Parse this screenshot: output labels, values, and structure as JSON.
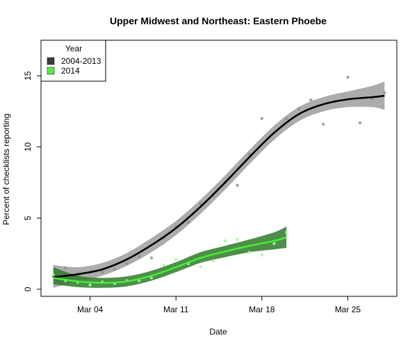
{
  "chart_data": {
    "type": "scatter",
    "title": "Upper Midwest and Northeast: Eastern Phoebe",
    "xlabel": "Date",
    "ylabel": "Percent of checklists reporting",
    "x_unit": "date (day of year, 2014)",
    "xlim": [
      "2014-02-28",
      "2014-03-29"
    ],
    "ylim": [
      -0.5,
      17.5
    ],
    "x_ticks": [
      {
        "date": "2014-03-04",
        "label": "Mar 04"
      },
      {
        "date": "2014-03-11",
        "label": "Mar 11"
      },
      {
        "date": "2014-03-18",
        "label": "Mar 18"
      },
      {
        "date": "2014-03-25",
        "label": "Mar 25"
      }
    ],
    "y_ticks": [
      0,
      5,
      10,
      15
    ],
    "legend": {
      "title": "Year",
      "placement": "top-left",
      "entries": [
        {
          "label": "2004-2013",
          "color": "#3d3d3d"
        },
        {
          "label": "2014",
          "color": "#55ee44"
        }
      ]
    },
    "series": [
      {
        "name": "2004-2013",
        "point_color": "#8c8c8c",
        "line_color": "#000000",
        "band_color": "#8c8c8c",
        "points": [
          {
            "x": "2014-03-01",
            "y": 0.9
          },
          {
            "x": "2014-03-02",
            "y": 1.5
          },
          {
            "x": "2014-03-03",
            "y": 1.1
          },
          {
            "x": "2014-03-04",
            "y": 1.2
          },
          {
            "x": "2014-03-05",
            "y": 1.2
          },
          {
            "x": "2014-03-06",
            "y": 1.4
          },
          {
            "x": "2014-03-07",
            "y": 1.8
          },
          {
            "x": "2014-03-08",
            "y": 2.3
          },
          {
            "x": "2014-03-09",
            "y": 2.2
          },
          {
            "x": "2014-03-10",
            "y": 3.6
          },
          {
            "x": "2014-03-11",
            "y": 4.4
          },
          {
            "x": "2014-03-12",
            "y": 4.7
          },
          {
            "x": "2014-03-13",
            "y": 6.0
          },
          {
            "x": "2014-03-14",
            "y": 6.6
          },
          {
            "x": "2014-03-15",
            "y": 7.5
          },
          {
            "x": "2014-03-16",
            "y": 7.3
          },
          {
            "x": "2014-03-17",
            "y": 9.5
          },
          {
            "x": "2014-03-18",
            "y": 12.0
          },
          {
            "x": "2014-03-19",
            "y": 11.0
          },
          {
            "x": "2014-03-20",
            "y": 12.0
          },
          {
            "x": "2014-03-21",
            "y": 12.7
          },
          {
            "x": "2014-03-22",
            "y": 13.3
          },
          {
            "x": "2014-03-23",
            "y": 11.6
          },
          {
            "x": "2014-03-24",
            "y": 13.2
          },
          {
            "x": "2014-03-25",
            "y": 14.9
          },
          {
            "x": "2014-03-26",
            "y": 11.7
          },
          {
            "x": "2014-03-27",
            "y": 13.4
          },
          {
            "x": "2014-03-28",
            "y": 13.8
          }
        ],
        "smooth": [
          {
            "x": "2014-03-01",
            "y": 0.85,
            "lo": 0.1,
            "hi": 1.7
          },
          {
            "x": "2014-03-03",
            "y": 1.05,
            "lo": 0.55,
            "hi": 1.55
          },
          {
            "x": "2014-03-05",
            "y": 1.4,
            "lo": 0.95,
            "hi": 1.85
          },
          {
            "x": "2014-03-07",
            "y": 2.1,
            "lo": 1.65,
            "hi": 2.55
          },
          {
            "x": "2014-03-09",
            "y": 3.1,
            "lo": 2.6,
            "hi": 3.6
          },
          {
            "x": "2014-03-11",
            "y": 4.3,
            "lo": 3.8,
            "hi": 4.8
          },
          {
            "x": "2014-03-13",
            "y": 5.8,
            "lo": 5.3,
            "hi": 6.3
          },
          {
            "x": "2014-03-15",
            "y": 7.5,
            "lo": 7.0,
            "hi": 8.0
          },
          {
            "x": "2014-03-17",
            "y": 9.3,
            "lo": 8.8,
            "hi": 9.8
          },
          {
            "x": "2014-03-19",
            "y": 11.0,
            "lo": 10.5,
            "hi": 11.5
          },
          {
            "x": "2014-03-21",
            "y": 12.3,
            "lo": 11.8,
            "hi": 12.8
          },
          {
            "x": "2014-03-23",
            "y": 13.0,
            "lo": 12.5,
            "hi": 13.5
          },
          {
            "x": "2014-03-25",
            "y": 13.35,
            "lo": 12.8,
            "hi": 13.9
          },
          {
            "x": "2014-03-27",
            "y": 13.5,
            "lo": 12.8,
            "hi": 14.3
          },
          {
            "x": "2014-03-28",
            "y": 13.6,
            "lo": 12.6,
            "hi": 14.6
          }
        ]
      },
      {
        "name": "2014",
        "point_color": "#aaf5a0",
        "line_color": "#44ee33",
        "band_color": "#2f7a2a",
        "points": [
          {
            "x": "2014-03-01",
            "y": 1.0
          },
          {
            "x": "2014-03-02",
            "y": 0.6
          },
          {
            "x": "2014-03-03",
            "y": 0.5
          },
          {
            "x": "2014-03-04",
            "y": 0.3
          },
          {
            "x": "2014-03-05",
            "y": 0.5
          },
          {
            "x": "2014-03-06",
            "y": 0.4
          },
          {
            "x": "2014-03-07",
            "y": 0.6
          },
          {
            "x": "2014-03-08",
            "y": 0.6
          },
          {
            "x": "2014-03-09",
            "y": 0.8
          },
          {
            "x": "2014-03-10",
            "y": 1.7
          },
          {
            "x": "2014-03-11",
            "y": 2.1
          },
          {
            "x": "2014-03-12",
            "y": 1.8
          },
          {
            "x": "2014-03-13",
            "y": 1.6
          },
          {
            "x": "2014-03-14",
            "y": 2.0
          },
          {
            "x": "2014-03-15",
            "y": 3.4
          },
          {
            "x": "2014-03-16",
            "y": 3.5
          },
          {
            "x": "2014-03-17",
            "y": 2.6
          },
          {
            "x": "2014-03-18",
            "y": 2.4
          },
          {
            "x": "2014-03-19",
            "y": 3.2
          },
          {
            "x": "2014-03-20",
            "y": 4.0
          }
        ],
        "smooth": [
          {
            "x": "2014-03-01",
            "y": 0.8,
            "lo": 0.35,
            "hi": 1.55
          },
          {
            "x": "2014-03-03",
            "y": 0.55,
            "lo": 0.15,
            "hi": 0.95
          },
          {
            "x": "2014-03-05",
            "y": 0.45,
            "lo": 0.1,
            "hi": 0.8
          },
          {
            "x": "2014-03-07",
            "y": 0.55,
            "lo": 0.2,
            "hi": 0.9
          },
          {
            "x": "2014-03-09",
            "y": 0.95,
            "lo": 0.6,
            "hi": 1.3
          },
          {
            "x": "2014-03-11",
            "y": 1.55,
            "lo": 1.2,
            "hi": 1.9
          },
          {
            "x": "2014-03-13",
            "y": 2.2,
            "lo": 1.85,
            "hi": 2.6
          },
          {
            "x": "2014-03-15",
            "y": 2.65,
            "lo": 2.25,
            "hi": 3.05
          },
          {
            "x": "2014-03-17",
            "y": 3.05,
            "lo": 2.6,
            "hi": 3.5
          },
          {
            "x": "2014-03-19",
            "y": 3.4,
            "lo": 2.8,
            "hi": 4.0
          },
          {
            "x": "2014-03-20",
            "y": 3.65,
            "lo": 2.9,
            "hi": 4.4
          }
        ]
      }
    ]
  }
}
